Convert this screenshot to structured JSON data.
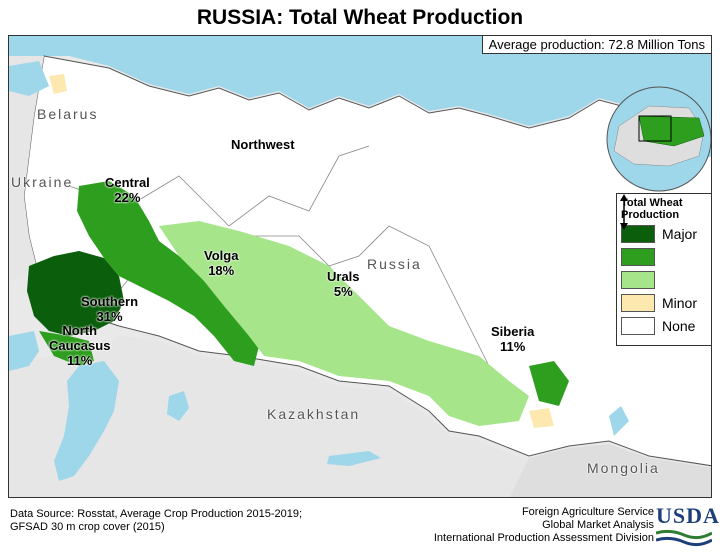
{
  "title": "RUSSIA: Total Wheat Production",
  "average_production": "Average production: 72.8 Million Tons",
  "regions": {
    "central": {
      "name": "Central",
      "share": "22%"
    },
    "northwest": {
      "name": "Northwest"
    },
    "volga": {
      "name": "Volga",
      "share": "18%"
    },
    "urals": {
      "name": "Urals",
      "share": "5%"
    },
    "southern": {
      "name": "Southern",
      "share": "31%"
    },
    "north_caucasus": {
      "name_line1": "North",
      "name_line2": "Caucasus",
      "share": "11%"
    },
    "siberia": {
      "name": "Siberia",
      "share": "11%"
    }
  },
  "countries": {
    "belarus": "Belarus",
    "ukraine": "Ukraine",
    "russia": "Russia",
    "kazakhstan": "Kazakhstan",
    "mongolia": "Mongolia"
  },
  "legend": {
    "title_line1": "Total Wheat",
    "title_line2": "Production",
    "items": [
      {
        "label": "Major",
        "color": "#0b5e0b"
      },
      {
        "label": "",
        "color": "#2e9e1f"
      },
      {
        "label": "",
        "color": "#a6e58a"
      },
      {
        "label": "Minor",
        "color": "#fde8b0"
      },
      {
        "label": "None",
        "color": "#ffffff"
      }
    ]
  },
  "footer": {
    "source_line1": "Data Source: Rosstat, Average Crop Production 2015-2019;",
    "source_line2": "GFSAD 30 m crop cover (2015)",
    "agency_line1": "Foreign Agriculture Service",
    "agency_line2": "Global Market Analysis",
    "agency_line3": "International Production Assessment Division",
    "logo_text": "USDA"
  },
  "colors": {
    "water": "#9ed6ea",
    "land_other": "#e6e6e6",
    "russia_land": "#ffffff",
    "border": "#555555"
  }
}
